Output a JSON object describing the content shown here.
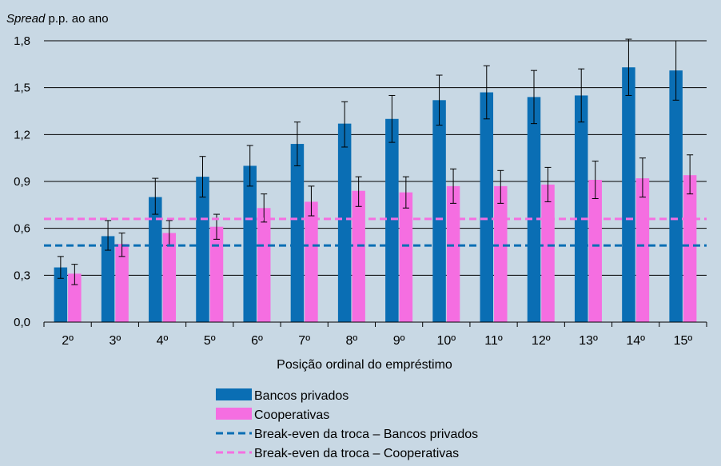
{
  "chart_data": {
    "type": "bar",
    "ylabel_italic": "Spread",
    "ylabel_rest": " p.p. ao ano",
    "xlabel": "Posição ordinal do empréstimo",
    "ylim": [
      0,
      1.8
    ],
    "yticks": [
      "0,0",
      "0,3",
      "0,6",
      "0,9",
      "1,2",
      "1,5",
      "1,8"
    ],
    "grid": true,
    "legend_position": "bottom",
    "categories": [
      "2º",
      "3º",
      "4º",
      "5º",
      "6º",
      "7º",
      "8º",
      "9º",
      "10º",
      "11º",
      "12º",
      "13º",
      "14º",
      "15º"
    ],
    "series": [
      {
        "name": "Bancos privados",
        "color": "#0a6eb4",
        "values": [
          0.35,
          0.55,
          0.8,
          0.93,
          1.0,
          1.14,
          1.27,
          1.3,
          1.42,
          1.47,
          1.44,
          1.45,
          1.63,
          1.61
        ],
        "err_low": [
          0.28,
          0.46,
          0.69,
          0.8,
          0.87,
          1.0,
          1.12,
          1.15,
          1.26,
          1.3,
          1.27,
          1.28,
          1.45,
          1.42
        ],
        "err_high": [
          0.42,
          0.65,
          0.92,
          1.06,
          1.13,
          1.28,
          1.41,
          1.45,
          1.58,
          1.64,
          1.61,
          1.62,
          1.81,
          1.8
        ]
      },
      {
        "name": "Cooperativas",
        "color": "#f56ee1",
        "values": [
          0.31,
          0.5,
          0.57,
          0.61,
          0.73,
          0.77,
          0.84,
          0.83,
          0.87,
          0.87,
          0.88,
          0.91,
          0.92,
          0.94
        ],
        "err_low": [
          0.24,
          0.42,
          0.49,
          0.53,
          0.64,
          0.68,
          0.74,
          0.73,
          0.76,
          0.76,
          0.77,
          0.79,
          0.8,
          0.82
        ],
        "err_high": [
          0.37,
          0.57,
          0.65,
          0.69,
          0.82,
          0.87,
          0.93,
          0.93,
          0.98,
          0.97,
          0.99,
          1.03,
          1.05,
          1.07
        ]
      }
    ],
    "lines": [
      {
        "name": "Break-even da troca – Bancos privados",
        "color": "#0a6eb4",
        "value": 0.49
      },
      {
        "name": "Break-even da troca – Cooperativas",
        "color": "#f56ee1",
        "value": 0.66
      }
    ]
  }
}
